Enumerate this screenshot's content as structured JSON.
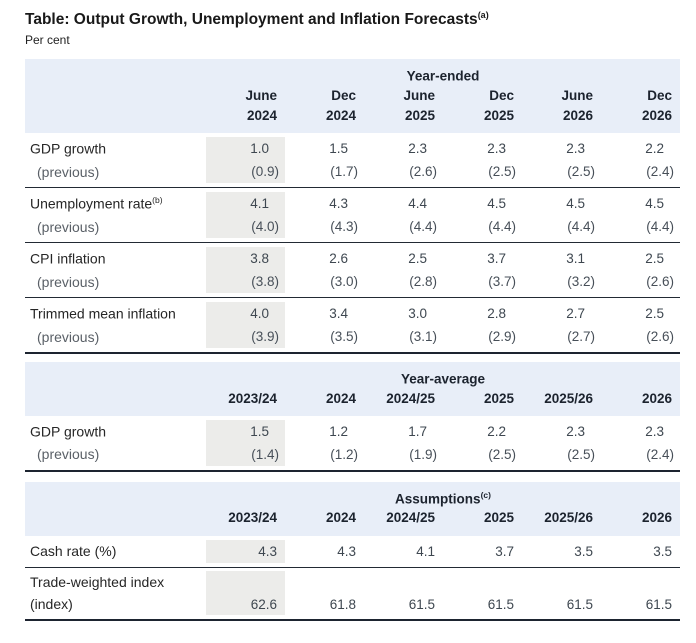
{
  "title": {
    "text": "Table: Output Growth, Unemployment and Inflation Forecasts",
    "sup": "(a)"
  },
  "subtitle": "Per cent",
  "labels": {
    "previous": "(previous)"
  },
  "colors": {
    "header_blue": "#e8eef8",
    "column_shade": "#ececea",
    "rule": "#222a34",
    "number_text": "#3e4750"
  },
  "tables": [
    {
      "span_header": "Year-ended",
      "span_sup": "",
      "col_headers": [
        {
          "l1": "June",
          "l2": "2024"
        },
        {
          "l1": "Dec",
          "l2": "2024"
        },
        {
          "l1": "June",
          "l2": "2025"
        },
        {
          "l1": "Dec",
          "l2": "2025"
        },
        {
          "l1": "June",
          "l2": "2026"
        },
        {
          "l1": "Dec",
          "l2": "2026"
        }
      ],
      "rows": [
        {
          "label": "GDP growth",
          "sup": "",
          "values": [
            "1.0",
            "1.5",
            "2.3",
            "2.3",
            "2.3",
            "2.2"
          ],
          "previous": [
            "(0.9)",
            "(1.7)",
            "(2.6)",
            "(2.5)",
            "(2.5)",
            "(2.4)"
          ]
        },
        {
          "label": "Unemployment rate",
          "sup": "(b)",
          "values": [
            "4.1",
            "4.3",
            "4.4",
            "4.5",
            "4.5",
            "4.5"
          ],
          "previous": [
            "(4.0)",
            "(4.3)",
            "(4.4)",
            "(4.4)",
            "(4.4)",
            "(4.4)"
          ]
        },
        {
          "label": "CPI inflation",
          "sup": "",
          "values": [
            "3.8",
            "2.6",
            "2.5",
            "3.7",
            "3.1",
            "2.5"
          ],
          "previous": [
            "(3.8)",
            "(3.0)",
            "(2.8)",
            "(3.7)",
            "(3.2)",
            "(2.6)"
          ]
        },
        {
          "label": "Trimmed mean inflation",
          "sup": "",
          "values": [
            "4.0",
            "3.4",
            "3.0",
            "2.8",
            "2.7",
            "2.5"
          ],
          "previous": [
            "(3.9)",
            "(3.5)",
            "(3.1)",
            "(2.9)",
            "(2.7)",
            "(2.6)"
          ]
        }
      ]
    },
    {
      "span_header": "Year-average",
      "span_sup": "",
      "col_headers": [
        "2023/24",
        "2024",
        "2024/25",
        "2025",
        "2025/26",
        "2026"
      ],
      "rows": [
        {
          "label": "GDP growth",
          "sup": "",
          "values": [
            "1.5",
            "1.2",
            "1.7",
            "2.2",
            "2.3",
            "2.3"
          ],
          "previous": [
            "(1.4)",
            "(1.2)",
            "(1.9)",
            "(2.5)",
            "(2.5)",
            "(2.4)"
          ]
        }
      ]
    },
    {
      "span_header": "Assumptions",
      "span_sup": "(c)",
      "col_headers": [
        "2023/24",
        "2024",
        "2024/25",
        "2025",
        "2025/26",
        "2026"
      ],
      "rows": [
        {
          "label": "Cash rate (%)",
          "values": [
            "4.3",
            "4.3",
            "4.1",
            "3.7",
            "3.5",
            "3.5"
          ]
        },
        {
          "label": "Trade-weighted index",
          "label2": "(index)",
          "values": [
            "62.6",
            "61.8",
            "61.5",
            "61.5",
            "61.5",
            "61.5"
          ]
        }
      ]
    }
  ]
}
